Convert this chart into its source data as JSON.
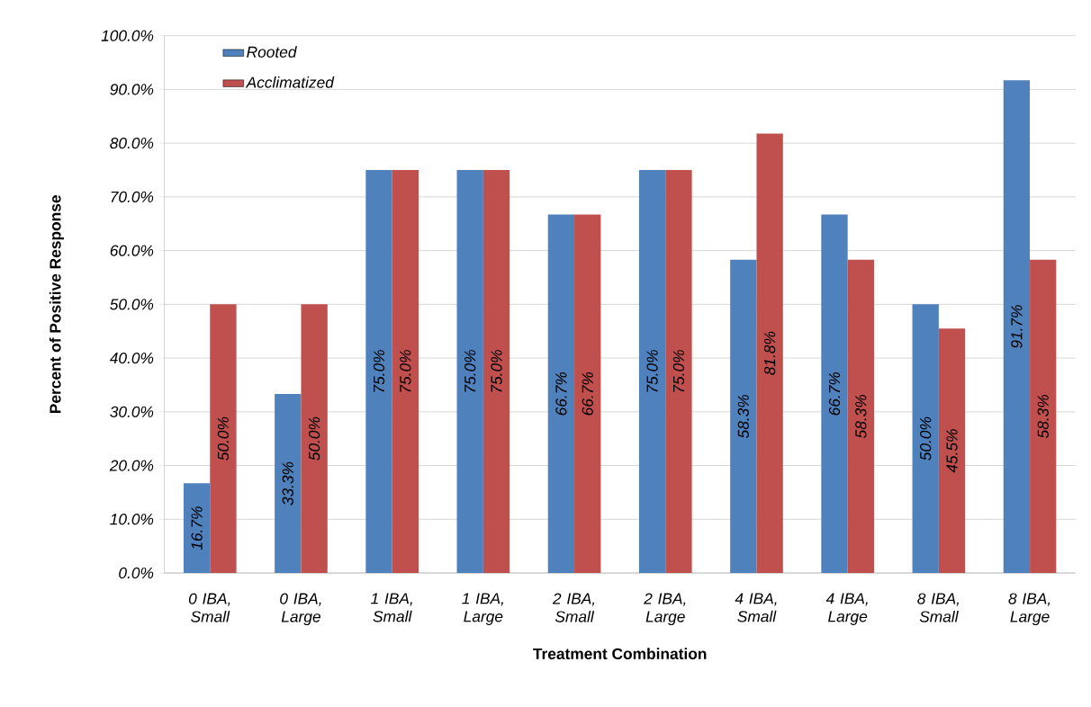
{
  "chart_data": {
    "type": "bar",
    "xlabel": "Treatment Combination",
    "ylabel": "Percent of Positive Response",
    "categories": [
      "0 IBA, Small",
      "0 IBA, Large",
      "1 IBA, Small",
      "1 IBA, Large",
      "2 IBA, Small",
      "2 IBA, Large",
      "4 IBA, Small",
      "4 IBA, Large",
      "8 IBA, Small",
      "8 IBA, Large"
    ],
    "series": [
      {
        "name": "Rooted",
        "color": "#4f81bd",
        "values": [
          16.7,
          33.3,
          75.0,
          75.0,
          66.7,
          75.0,
          58.3,
          66.7,
          50.0,
          91.7
        ],
        "value_labels": [
          "16.7%",
          "33.3%",
          "75.0%",
          "75.0%",
          "66.7%",
          "75.0%",
          "58.3%",
          "66.7%",
          "50.0%",
          "91.7%"
        ]
      },
      {
        "name": "Acclimatized",
        "color": "#c0504d",
        "values": [
          50.0,
          50.0,
          75.0,
          75.0,
          66.7,
          75.0,
          81.8,
          58.3,
          45.5,
          58.3
        ],
        "value_labels": [
          "50.0%",
          "50.0%",
          "75.0%",
          "75.0%",
          "66.7%",
          "75.0%",
          "81.8%",
          "58.3%",
          "45.5%",
          "58.3%"
        ]
      }
    ],
    "ylim": [
      0,
      100
    ],
    "yticks": [
      {
        "value": 0,
        "label": "0.0%"
      },
      {
        "value": 10,
        "label": "10.0%"
      },
      {
        "value": 20,
        "label": "20.0%"
      },
      {
        "value": 30,
        "label": "30.0%"
      },
      {
        "value": 40,
        "label": "40.0%"
      },
      {
        "value": 50,
        "label": "50.0%"
      },
      {
        "value": 60,
        "label": "60.0%"
      },
      {
        "value": 70,
        "label": "70.0%"
      },
      {
        "value": 80,
        "label": "80.0%"
      },
      {
        "value": 90,
        "label": "90.0%"
      },
      {
        "value": 100,
        "label": "100.0%"
      }
    ],
    "grid": "y",
    "legend": "top left"
  }
}
